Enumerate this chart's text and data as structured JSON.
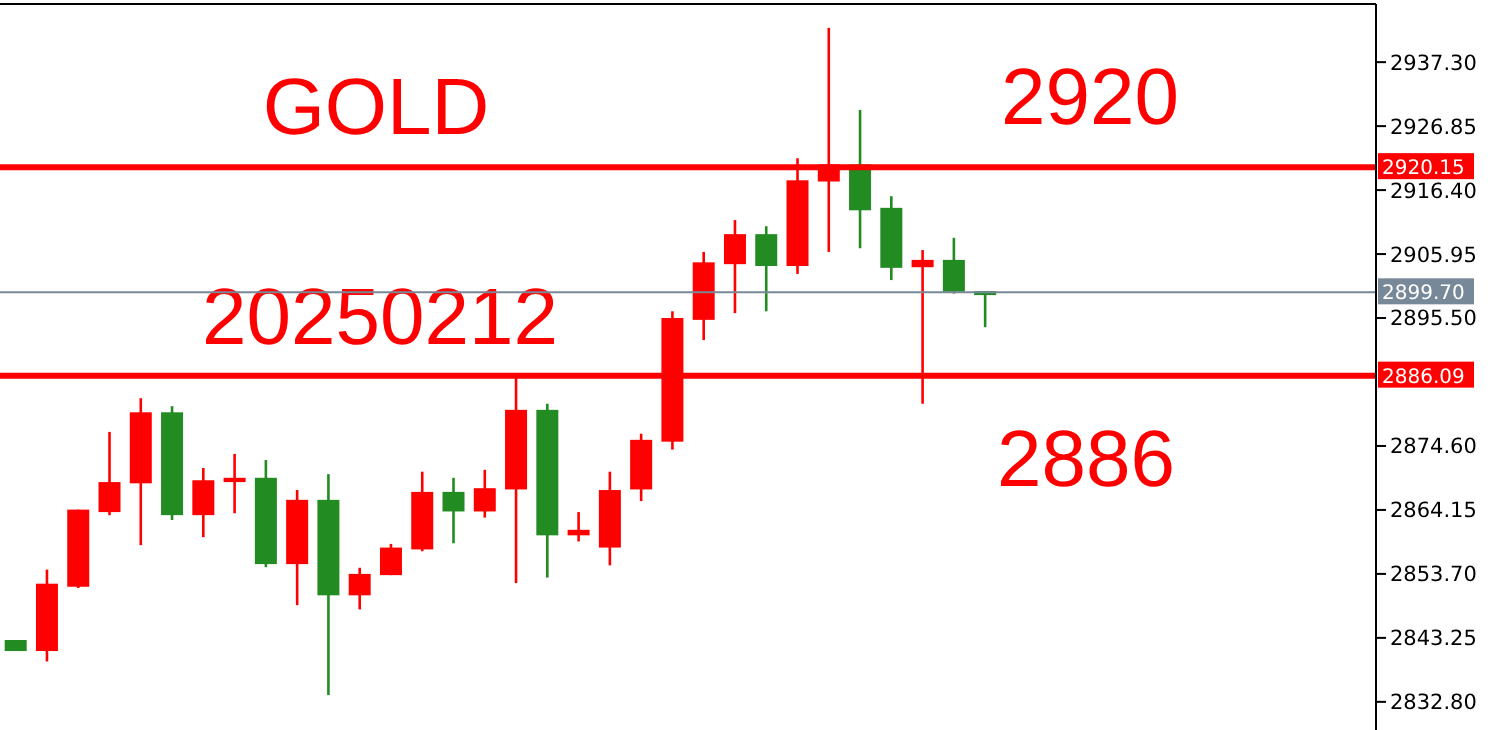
{
  "chart_data": {
    "type": "candlestick",
    "annotations": [
      "GOLD",
      "2920",
      "20250212",
      "2886"
    ],
    "categories": [
      null,
      null,
      null,
      null,
      null,
      null,
      null,
      null,
      null,
      null,
      null,
      null,
      null,
      null,
      null,
      null,
      null,
      null,
      null,
      null,
      null,
      null,
      null,
      null,
      null,
      null,
      null,
      null,
      null,
      null,
      null,
      null,
      null,
      null,
      null,
      null,
      null,
      null,
      null,
      null,
      null,
      null,
      null,
      null
    ],
    "ohlc": [
      [
        2842.9,
        2842.9,
        2841.1,
        2841.1
      ],
      [
        2841.1,
        2854.4,
        2839.4,
        2852.1
      ],
      [
        2851.6,
        2864.2,
        2851.4,
        2864.2
      ],
      [
        2863.8,
        2876.9,
        2863.3,
        2868.7
      ],
      [
        2868.5,
        2882.4,
        2858.4,
        2880.1
      ],
      [
        2880.1,
        2881.1,
        2862.5,
        2863.3
      ],
      [
        2863.3,
        2871.0,
        2859.7,
        2869.0
      ],
      [
        2868.7,
        2873.3,
        2863.6,
        2869.4
      ],
      [
        2869.4,
        2872.3,
        2854.8,
        2855.3
      ],
      [
        2855.3,
        2867.4,
        2848.6,
        2865.8
      ],
      [
        2865.8,
        2870.0,
        2833.9,
        2850.2
      ],
      [
        2850.2,
        2854.7,
        2847.9,
        2853.7
      ],
      [
        2853.5,
        2858.6,
        2853.5,
        2858.0
      ],
      [
        2857.7,
        2870.4,
        2857.4,
        2867.1
      ],
      [
        2867.1,
        2869.4,
        2858.7,
        2863.9
      ],
      [
        2863.9,
        2870.7,
        2862.9,
        2867.7
      ],
      [
        2867.5,
        2886.0,
        2852.2,
        2880.5
      ],
      [
        2880.5,
        2881.5,
        2853.1,
        2860.0
      ],
      [
        2860.0,
        2863.8,
        2859.0,
        2860.9
      ],
      [
        2858.0,
        2870.4,
        2855.1,
        2867.4
      ],
      [
        2867.5,
        2876.6,
        2865.6,
        2875.6
      ],
      [
        2875.3,
        2896.6,
        2874.0,
        2895.5
      ],
      [
        2895.2,
        2906.3,
        2891.9,
        2904.6
      ],
      [
        2904.3,
        2911.5,
        2896.3,
        2909.2
      ],
      [
        2909.2,
        2910.5,
        2896.6,
        2904.0
      ],
      [
        2904.0,
        2921.6,
        2902.7,
        2918.0
      ],
      [
        2917.8,
        2942.9,
        2906.3,
        2920.6
      ],
      [
        2920.6,
        2929.5,
        2906.9,
        2913.1
      ],
      [
        2913.5,
        2915.4,
        2901.7,
        2903.7
      ],
      [
        2903.8,
        2906.6,
        2881.5,
        2905.0
      ],
      [
        2905.0,
        2908.6,
        2899.5,
        2899.8
      ],
      [
        2899.9,
        2899.9,
        2894.0,
        2899.6
      ],
      null,
      null,
      null,
      null,
      null,
      null,
      null,
      null,
      null,
      null,
      null,
      null
    ],
    "colors": [
      "#228b22",
      "#ff0000",
      "#ff0000",
      "#ff0000",
      "#ff0000",
      "#228b22",
      "#ff0000",
      "#ff0000",
      "#228b22",
      "#ff0000",
      "#228b22",
      "#ff0000",
      "#ff0000",
      "#ff0000",
      "#228b22",
      "#ff0000",
      "#ff0000",
      "#228b22",
      "#ff0000",
      "#ff0000",
      "#ff0000",
      "#ff0000",
      "#ff0000",
      "#ff0000",
      "#228b22",
      "#ff0000",
      "#ff0000",
      "#228b22",
      "#228b22",
      "#ff0000",
      "#228b22",
      "#228b22",
      null,
      null,
      null,
      null,
      null,
      null,
      null,
      null,
      null,
      null,
      null,
      null
    ],
    "ylim": [
      2828.2,
      2946.8
    ],
    "yticks": [
      {
        "value": 2832.8,
        "label": "2832.80"
      },
      {
        "value": 2843.25,
        "label": "2843.25"
      },
      {
        "value": 2853.7,
        "label": "2853.70"
      },
      {
        "value": 2864.15,
        "label": "2864.15"
      },
      {
        "value": 2874.6,
        "label": "2874.60"
      },
      {
        "value": 2895.5,
        "label": "2895.50"
      },
      {
        "value": 2905.95,
        "label": "2905.95"
      },
      {
        "value": 2916.4,
        "label": "2916.40"
      },
      {
        "value": 2926.85,
        "label": "2926.85"
      },
      {
        "value": 2937.3,
        "label": "2937.30"
      }
    ],
    "ref_lines": [
      {
        "axis": "y",
        "value": 2920.15,
        "label": "2920.15",
        "color": "#ff0000"
      },
      {
        "axis": "y",
        "value": 2899.7,
        "label": "2899.70",
        "color": "#778899"
      },
      {
        "axis": "y",
        "value": 2886.09,
        "label": "2886.09",
        "color": "#ff0000"
      }
    ]
  }
}
